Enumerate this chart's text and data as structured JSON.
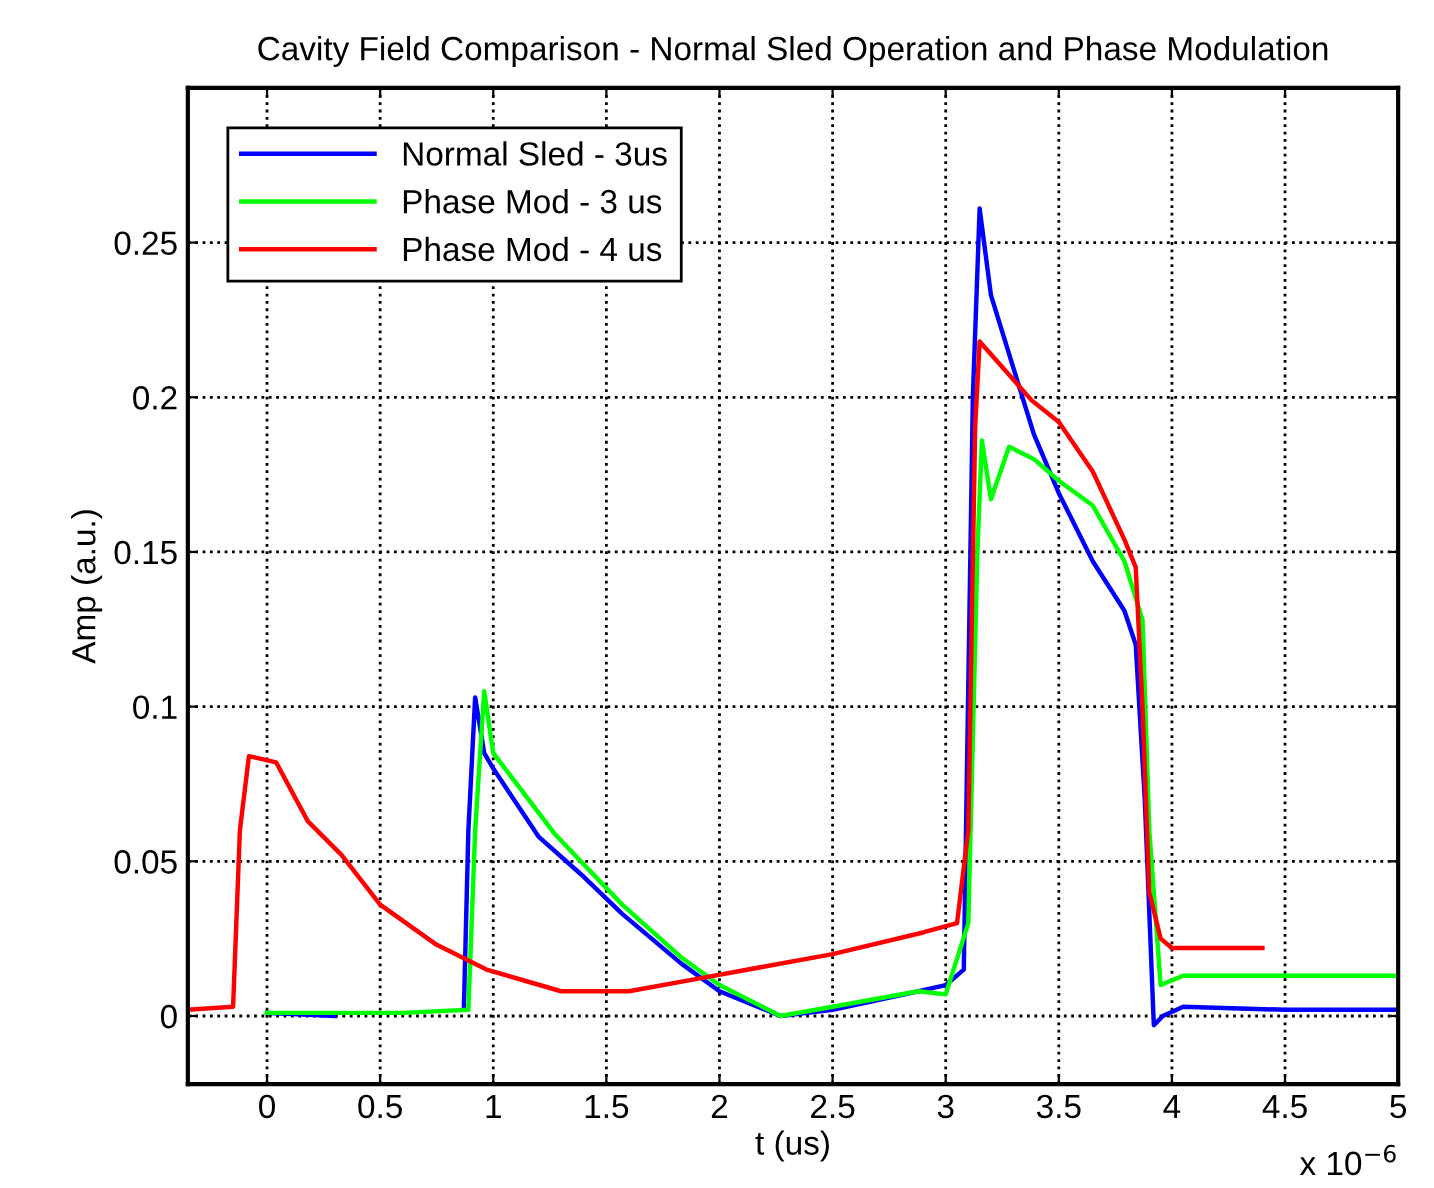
{
  "chart_data": {
    "type": "line",
    "title": "Cavity Field Comparison - Normal Sled Operation and Phase Modulation",
    "xlabel": "t (us)",
    "ylabel": "Amp (a.u.)",
    "annotations": [
      "x 10$^{−6}$"
    ],
    "xlim": [
      -0.35,
      5
    ],
    "ylim": [
      -0.022,
      0.3
    ],
    "xticks": [
      0,
      0.5,
      1,
      1.5,
      2,
      2.5,
      3,
      3.5,
      4,
      4.5,
      5
    ],
    "yticks": [
      0,
      0.05,
      0.1,
      0.15,
      0.2,
      0.25
    ],
    "grid": true,
    "legend": "top left",
    "line_style": "solid",
    "marker": "none",
    "series": [
      {
        "name": "Normal Sled - 3us",
        "color": "#0000ff",
        "x": [
          0,
          0.3,
          0.6,
          0.87,
          0.89,
          0.92,
          0.96,
          1.0,
          1.2,
          1.4,
          1.57,
          1.83,
          2.0,
          2.27,
          2.5,
          2.88,
          3.0,
          3.08,
          3.12,
          3.15,
          3.2,
          3.28,
          3.39,
          3.5,
          3.65,
          3.79,
          3.84,
          3.88,
          3.92,
          3.96,
          4.05,
          4.5,
          5
        ],
        "values": [
          0.001,
          0.0,
          null,
          0.002,
          0.06,
          0.103,
          0.085,
          0.08,
          0.058,
          0.045,
          0.033,
          0.017,
          0.008,
          0.0,
          0.002,
          0.008,
          0.01,
          0.015,
          0.2,
          0.261,
          0.233,
          0.214,
          0.188,
          0.169,
          0.147,
          0.131,
          0.12,
          0.07,
          -0.003,
          0.0,
          0.003,
          0.002,
          0.002
        ]
      },
      {
        "name": "Phase Mod - 3 us",
        "color": "#00ff00",
        "x": [
          0,
          0.3,
          0.6,
          0.89,
          0.92,
          0.96,
          1.0,
          1.27,
          1.57,
          1.83,
          2.0,
          2.27,
          2.5,
          2.88,
          3.0,
          3.1,
          3.14,
          3.16,
          3.2,
          3.28,
          3.39,
          3.5,
          3.65,
          3.79,
          3.87,
          3.9,
          3.95,
          4.05,
          4.5,
          5
        ],
        "values": [
          0.001,
          0.001,
          0.001,
          0.002,
          0.06,
          0.105,
          0.085,
          0.059,
          0.036,
          0.019,
          0.01,
          0.0,
          0.003,
          0.008,
          0.007,
          0.03,
          0.15,
          0.186,
          0.167,
          0.184,
          0.18,
          0.173,
          0.165,
          0.147,
          0.128,
          0.06,
          0.01,
          0.013,
          0.013,
          0.013
        ]
      },
      {
        "name": "Phase Mod - 4 us",
        "color": "#ff0000",
        "x": [
          -0.35,
          -0.15,
          -0.12,
          -0.08,
          0.04,
          0.18,
          0.33,
          0.5,
          0.75,
          0.97,
          1.3,
          1.6,
          1.9,
          2.2,
          2.5,
          2.9,
          3.05,
          3.1,
          3.13,
          3.15,
          3.38,
          3.5,
          3.65,
          3.79,
          3.84,
          3.87,
          3.9,
          3.95,
          4.0,
          4.4
        ],
        "values": [
          0.002,
          0.003,
          0.06,
          0.084,
          0.082,
          0.063,
          0.052,
          0.036,
          0.023,
          0.015,
          0.008,
          0.008,
          0.012,
          0.016,
          0.02,
          0.027,
          0.03,
          0.06,
          0.19,
          0.218,
          0.199,
          0.192,
          0.176,
          0.154,
          0.145,
          0.1,
          0.04,
          0.025,
          0.022,
          0.022
        ]
      }
    ]
  }
}
